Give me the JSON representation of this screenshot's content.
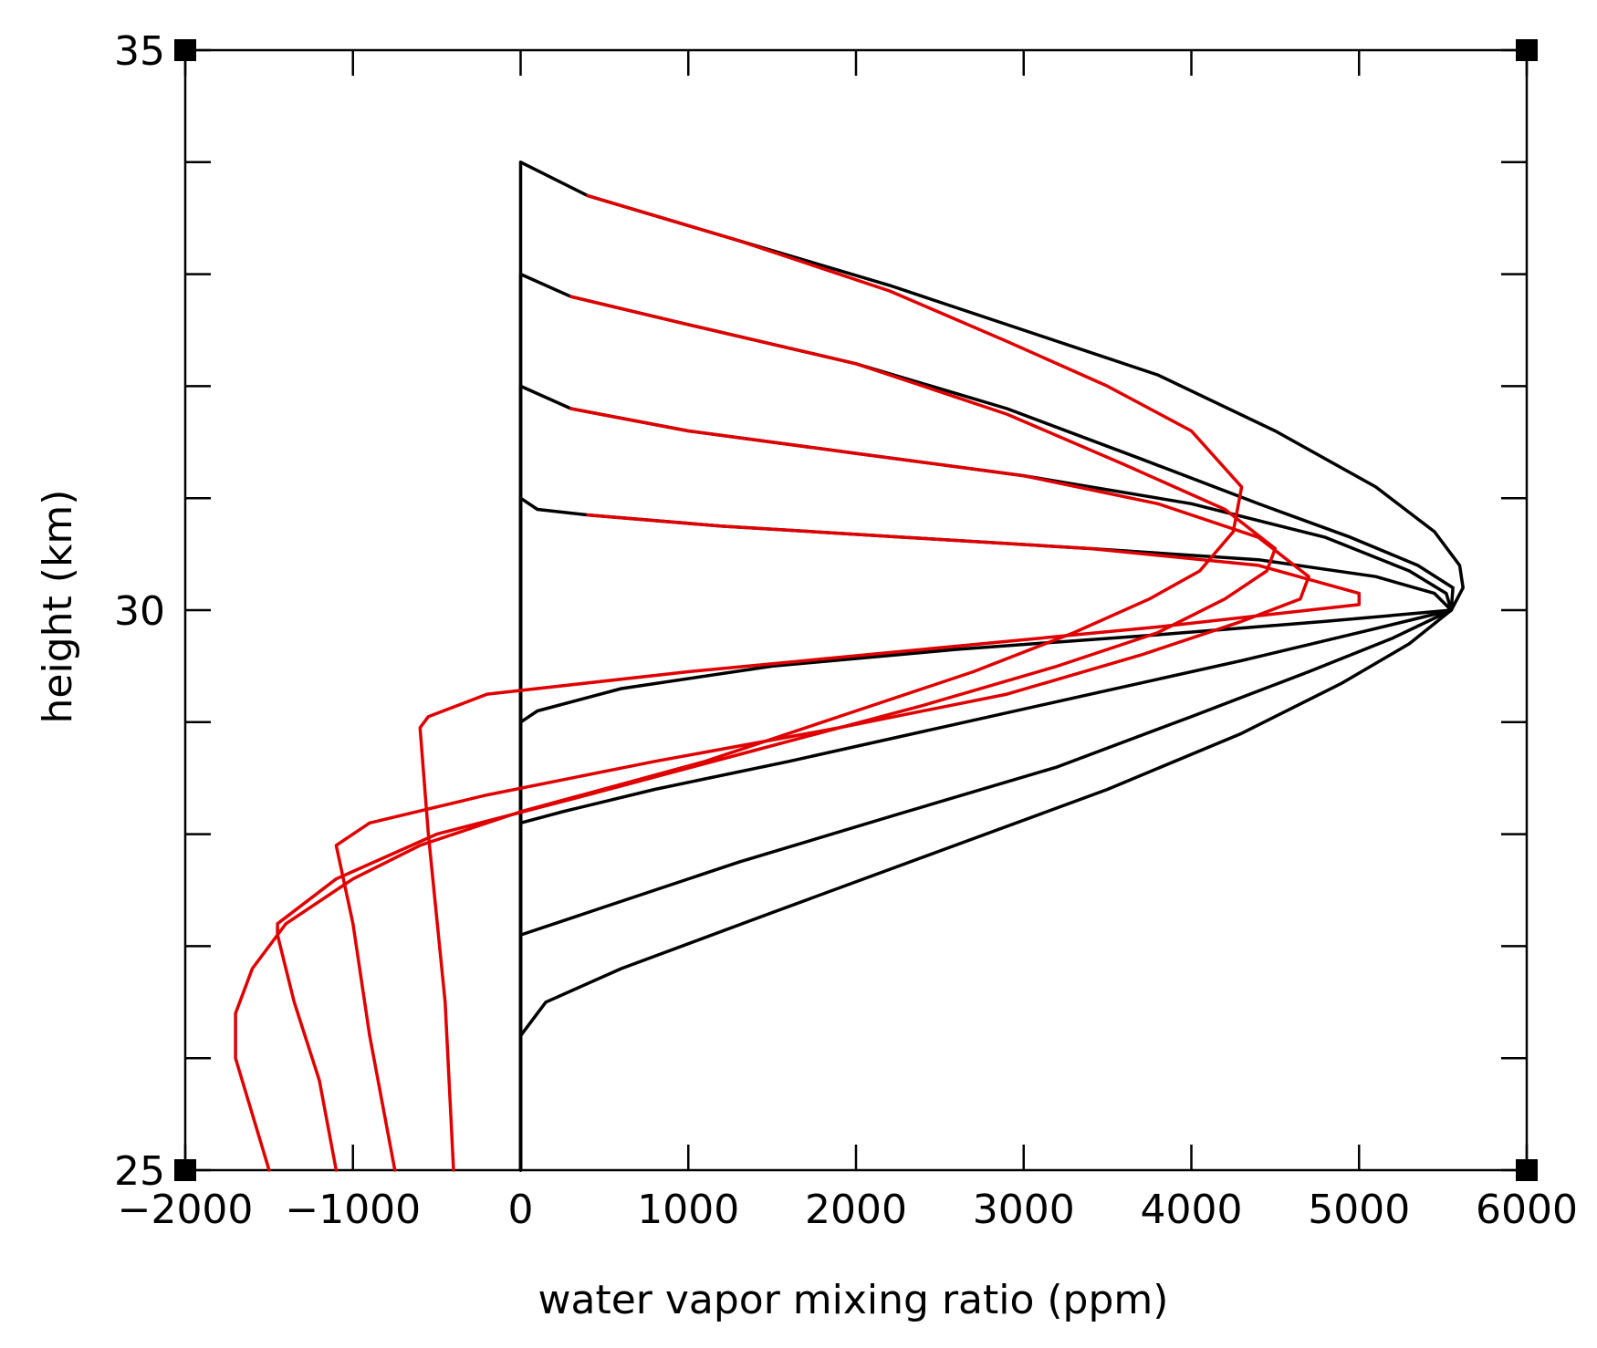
{
  "chart_data": {
    "type": "line",
    "title": "",
    "xlabel": "water vapor mixing ratio (ppm)",
    "ylabel": "height (km)",
    "xlim": [
      -2000,
      6000
    ],
    "ylim": [
      25,
      35
    ],
    "x_ticks": [
      -2000,
      -1000,
      0,
      1000,
      2000,
      3000,
      4000,
      5000,
      6000
    ],
    "x_tick_labels": [
      "−2000",
      "−1000",
      "0",
      "1000",
      "2000",
      "3000",
      "4000",
      "5000",
      "6000"
    ],
    "y_ticks": [
      25,
      30,
      35
    ],
    "y_tick_labels": [
      "25",
      "30",
      "35"
    ],
    "y_minor_ticks": [
      26,
      27,
      28,
      29,
      31,
      32,
      33,
      34
    ],
    "x_minor_ticks": [],
    "grid": false,
    "legend": "none",
    "series": [
      {
        "color": "#000000",
        "points": [
          [
            0,
            25
          ],
          [
            0,
            34
          ],
          [
            400,
            33.7
          ],
          [
            1300,
            33.3
          ],
          [
            2200,
            32.9
          ],
          [
            3000,
            32.5
          ],
          [
            3800,
            32.1
          ],
          [
            4500,
            31.6
          ],
          [
            5100,
            31.1
          ],
          [
            5450,
            30.7
          ],
          [
            5600,
            30.4
          ],
          [
            5620,
            30.2
          ],
          [
            5550,
            30
          ],
          [
            5300,
            29.7
          ],
          [
            4900,
            29.35
          ],
          [
            4300,
            28.9
          ],
          [
            3500,
            28.4
          ],
          [
            2500,
            27.85
          ],
          [
            1500,
            27.3
          ],
          [
            600,
            26.8
          ],
          [
            150,
            26.5
          ],
          [
            0,
            26.2
          ],
          [
            0,
            25
          ]
        ]
      },
      {
        "color": "#000000",
        "points": [
          [
            0,
            25
          ],
          [
            0,
            33
          ],
          [
            300,
            32.8
          ],
          [
            1000,
            32.55
          ],
          [
            2000,
            32.2
          ],
          [
            2900,
            31.8
          ],
          [
            3700,
            31.35
          ],
          [
            4400,
            30.95
          ],
          [
            4950,
            30.65
          ],
          [
            5350,
            30.4
          ],
          [
            5560,
            30.2
          ],
          [
            5550,
            30
          ],
          [
            5200,
            29.75
          ],
          [
            4700,
            29.45
          ],
          [
            4000,
            29.05
          ],
          [
            3200,
            28.6
          ],
          [
            2300,
            28.2
          ],
          [
            1300,
            27.75
          ],
          [
            500,
            27.35
          ],
          [
            100,
            27.15
          ],
          [
            0,
            27.1
          ],
          [
            0,
            25
          ]
        ]
      },
      {
        "color": "#000000",
        "points": [
          [
            0,
            25
          ],
          [
            0,
            32
          ],
          [
            300,
            31.8
          ],
          [
            1000,
            31.6
          ],
          [
            2000,
            31.4
          ],
          [
            3000,
            31.2
          ],
          [
            4000,
            30.95
          ],
          [
            4800,
            30.65
          ],
          [
            5300,
            30.35
          ],
          [
            5520,
            30.15
          ],
          [
            5550,
            30
          ],
          [
            5000,
            29.8
          ],
          [
            4300,
            29.55
          ],
          [
            3400,
            29.25
          ],
          [
            2500,
            28.95
          ],
          [
            1600,
            28.65
          ],
          [
            800,
            28.4
          ],
          [
            250,
            28.2
          ],
          [
            0,
            28.1
          ],
          [
            0,
            25
          ]
        ]
      },
      {
        "color": "#000000",
        "points": [
          [
            0,
            25
          ],
          [
            0,
            31
          ],
          [
            100,
            30.9
          ],
          [
            400,
            30.85
          ],
          [
            1200,
            30.75
          ],
          [
            2300,
            30.65
          ],
          [
            3400,
            30.55
          ],
          [
            4400,
            30.45
          ],
          [
            5100,
            30.3
          ],
          [
            5450,
            30.15
          ],
          [
            5550,
            30
          ],
          [
            4800,
            29.9
          ],
          [
            3800,
            29.78
          ],
          [
            2600,
            29.65
          ],
          [
            1500,
            29.5
          ],
          [
            600,
            29.3
          ],
          [
            100,
            29.1
          ],
          [
            0,
            29.0
          ],
          [
            0,
            25
          ]
        ]
      },
      {
        "color": "#e00000",
        "points": [
          [
            400,
            33.7
          ],
          [
            1300,
            33.3
          ],
          [
            2200,
            32.85
          ],
          [
            2900,
            32.4
          ],
          [
            3500,
            32
          ],
          [
            4000,
            31.6
          ],
          [
            4300,
            31.1
          ],
          [
            4250,
            30.7
          ],
          [
            4050,
            30.35
          ],
          [
            3750,
            30.1
          ],
          [
            3300,
            29.8
          ],
          [
            2700,
            29.45
          ],
          [
            2000,
            29.1
          ],
          [
            1100,
            28.65
          ],
          [
            0,
            28.2
          ],
          [
            -600,
            27.9
          ],
          [
            -1000,
            27.6
          ],
          [
            -1400,
            27.2
          ],
          [
            -1600,
            26.8
          ],
          [
            -1700,
            26.4
          ],
          [
            -1700,
            26
          ],
          [
            -1600,
            25.5
          ],
          [
            -1500,
            25
          ]
        ]
      },
      {
        "color": "#e00000",
        "points": [
          [
            300,
            32.8
          ],
          [
            1000,
            32.55
          ],
          [
            2000,
            32.2
          ],
          [
            2900,
            31.75
          ],
          [
            3600,
            31.3
          ],
          [
            4200,
            30.9
          ],
          [
            4500,
            30.55
          ],
          [
            4450,
            30.35
          ],
          [
            4200,
            30.1
          ],
          [
            3800,
            29.8
          ],
          [
            3200,
            29.5
          ],
          [
            2400,
            29.15
          ],
          [
            1400,
            28.75
          ],
          [
            400,
            28.35
          ],
          [
            -500,
            28
          ],
          [
            -1100,
            27.6
          ],
          [
            -1450,
            27.2
          ],
          [
            -1450,
            27.1
          ],
          [
            -1350,
            26.5
          ],
          [
            -1200,
            25.8
          ],
          [
            -1100,
            25
          ]
        ]
      },
      {
        "color": "#e00000",
        "points": [
          [
            300,
            31.8
          ],
          [
            1000,
            31.6
          ],
          [
            2000,
            31.4
          ],
          [
            3000,
            31.2
          ],
          [
            3800,
            30.95
          ],
          [
            4400,
            30.65
          ],
          [
            4700,
            30.3
          ],
          [
            4650,
            30.1
          ],
          [
            4300,
            29.9
          ],
          [
            3700,
            29.6
          ],
          [
            2900,
            29.25
          ],
          [
            1900,
            28.95
          ],
          [
            800,
            28.65
          ],
          [
            -200,
            28.35
          ],
          [
            -900,
            28.1
          ],
          [
            -1100,
            27.9
          ],
          [
            -1000,
            27.2
          ],
          [
            -900,
            26.2
          ],
          [
            -750,
            25
          ]
        ]
      },
      {
        "color": "#e00000",
        "points": [
          [
            400,
            30.85
          ],
          [
            1200,
            30.75
          ],
          [
            2300,
            30.65
          ],
          [
            3400,
            30.55
          ],
          [
            4400,
            30.4
          ],
          [
            5000,
            30.15
          ],
          [
            5000,
            30.05
          ],
          [
            3800,
            29.85
          ],
          [
            2400,
            29.65
          ],
          [
            1000,
            29.45
          ],
          [
            -200,
            29.25
          ],
          [
            -550,
            29.05
          ],
          [
            -600,
            28.95
          ],
          [
            -550,
            28
          ],
          [
            -450,
            26.5
          ],
          [
            -400,
            25
          ]
        ]
      }
    ]
  }
}
